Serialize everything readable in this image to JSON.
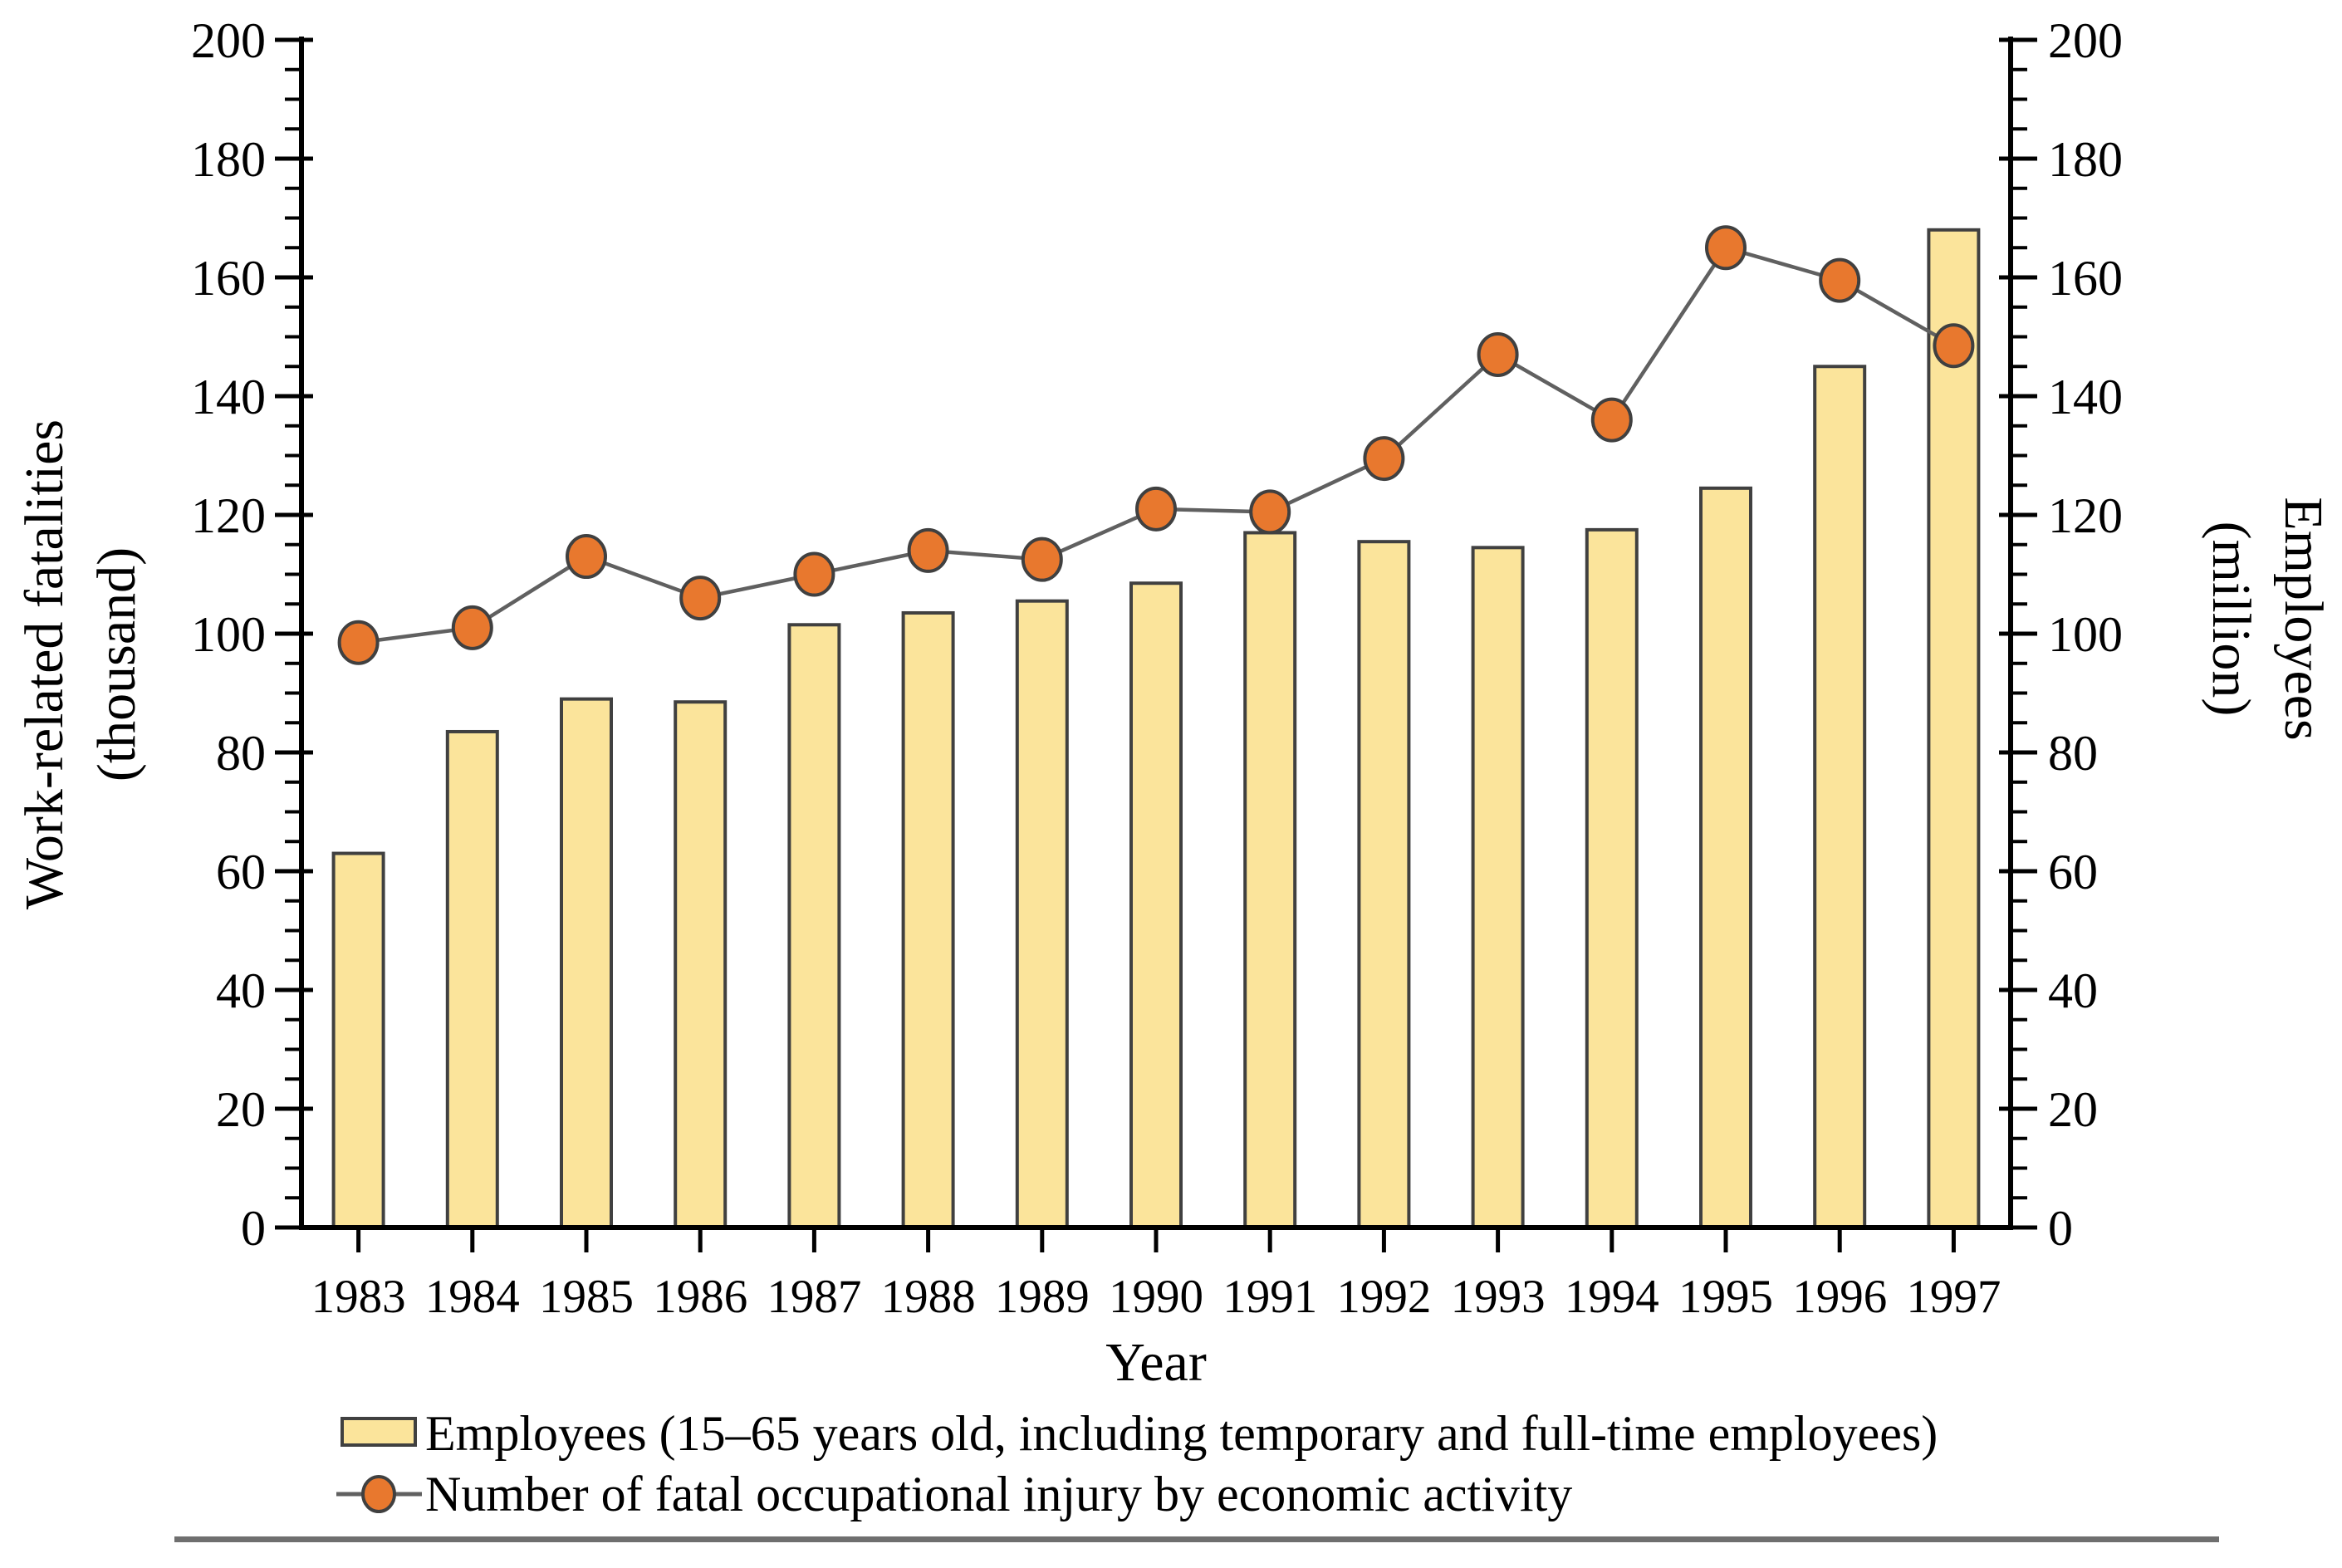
{
  "figure": {
    "background": "#ffffff",
    "bottom_rule_color": "#6f6f6f"
  },
  "chart_data": {
    "type": "combo-bar-line",
    "categories": [
      "1983",
      "1984",
      "1985",
      "1986",
      "1987",
      "1988",
      "1989",
      "1990",
      "1991",
      "1992",
      "1993",
      "1994",
      "1995",
      "1996",
      "1997"
    ],
    "series": [
      {
        "name": "Employees (15–65 years old, including temporary and full-time employees)",
        "type": "bar",
        "axis": "right",
        "unit": "million",
        "values": [
          63,
          83.5,
          89,
          88.5,
          101.5,
          103.5,
          105.5,
          108.5,
          117,
          115.5,
          114.5,
          117.5,
          124.5,
          145,
          168
        ],
        "fill": "#FBE49B",
        "stroke": "#404040"
      },
      {
        "name": "Number of fatal occupational injury by economic activity",
        "type": "line",
        "axis": "left",
        "unit": "thousand",
        "values": [
          98.5,
          101,
          113,
          106,
          110,
          114,
          112.5,
          121,
          120.5,
          129.5,
          147,
          136,
          165,
          159.5,
          148.5
        ],
        "line_color": "#606060",
        "marker_fill": "#E8782E",
        "marker_stroke": "#404040"
      }
    ],
    "xlabel": "Year",
    "left_axis": {
      "title_line1": "Work-related fatalities",
      "title_line2": "(thousand)",
      "min": 0,
      "max": 200,
      "major_step": 20,
      "minor_step": 5,
      "tick_labels": [
        "0",
        "20",
        "40",
        "60",
        "80",
        "100",
        "120",
        "140",
        "160",
        "180",
        "200"
      ]
    },
    "right_axis": {
      "title_line1": "Employees",
      "title_line2": "(million)",
      "min": 0,
      "max": 200,
      "major_step": 20,
      "minor_step": 5,
      "tick_labels": [
        "0",
        "20",
        "40",
        "60",
        "80",
        "100",
        "120",
        "140",
        "160",
        "180",
        "200"
      ]
    },
    "grid": "off",
    "legend_position": "bottom-left"
  }
}
